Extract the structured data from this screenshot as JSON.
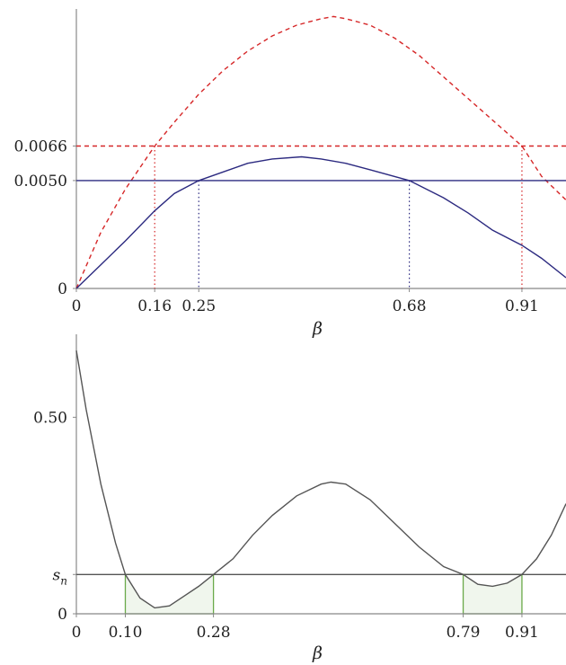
{
  "chart_data": [
    {
      "type": "line",
      "xlabel": "β",
      "xlim": [
        0,
        1.0
      ],
      "ylim": [
        0,
        0.0122
      ],
      "x_ticks": [
        {
          "value": 0,
          "label": "0"
        },
        {
          "value": 0.16,
          "label": "0.16"
        },
        {
          "value": 0.25,
          "label": "0.25"
        },
        {
          "value": 0.68,
          "label": "0.68"
        },
        {
          "value": 0.91,
          "label": "0.91"
        }
      ],
      "y_ticks": [
        {
          "value": 0,
          "label": "0"
        },
        {
          "value": 0.005,
          "label": "0.0050"
        },
        {
          "value": 0.0066,
          "label": "0.0066"
        }
      ],
      "series": [
        {
          "style": "dashed",
          "color": "#d62728",
          "x": [
            0,
            0.05,
            0.1,
            0.16,
            0.2,
            0.25,
            0.3,
            0.35,
            0.4,
            0.45,
            0.5,
            0.525,
            0.55,
            0.6,
            0.65,
            0.7,
            0.75,
            0.8,
            0.85,
            0.91,
            0.95,
            1.0
          ],
          "y": [
            0,
            0.0026,
            0.0046,
            0.0066,
            0.0077,
            0.009,
            0.0101,
            0.011,
            0.0117,
            0.0122,
            0.0125,
            0.0126,
            0.0125,
            0.0122,
            0.0116,
            0.0108,
            0.0098,
            0.0088,
            0.0078,
            0.0066,
            0.0052,
            0.0041
          ]
        },
        {
          "style": "solid",
          "color": "#2c2a80",
          "x": [
            0,
            0.05,
            0.1,
            0.16,
            0.2,
            0.25,
            0.3,
            0.35,
            0.4,
            0.46,
            0.5,
            0.55,
            0.6,
            0.68,
            0.75,
            0.8,
            0.85,
            0.91,
            0.95,
            1.0
          ],
          "y": [
            0,
            0.0011,
            0.0022,
            0.0036,
            0.0044,
            0.005,
            0.0054,
            0.0058,
            0.006,
            0.0061,
            0.006,
            0.0058,
            0.0055,
            0.005,
            0.0042,
            0.0035,
            0.0027,
            0.002,
            0.0014,
            0.0005
          ]
        },
        {
          "style": "dashed",
          "color": "#d62728",
          "x": [
            0,
            1.0
          ],
          "y": [
            0.0066,
            0.0066
          ]
        },
        {
          "style": "solid",
          "color": "#2c2a80",
          "x": [
            0,
            1.0
          ],
          "y": [
            0.005,
            0.005
          ]
        }
      ],
      "markers": [
        {
          "x": 0.16,
          "color": "#d62728"
        },
        {
          "x": 0.25,
          "color": "#2c2a80"
        },
        {
          "x": 0.68,
          "color": "#2c2a80"
        },
        {
          "x": 0.91,
          "color": "#d62728"
        }
      ]
    },
    {
      "type": "line",
      "xlabel": "β",
      "xlim": [
        0,
        1.0
      ],
      "ylim": [
        0,
        0.67
      ],
      "x_ticks": [
        {
          "value": 0,
          "label": "0"
        },
        {
          "value": 0.1,
          "label": "0.10"
        },
        {
          "value": 0.28,
          "label": "0.28"
        },
        {
          "value": 0.79,
          "label": "0.79"
        },
        {
          "value": 0.91,
          "label": "0.91"
        }
      ],
      "y_ticks": [
        {
          "value": 0,
          "label": "0"
        },
        {
          "value": 0.1,
          "label": "s_n"
        },
        {
          "value": 0.5,
          "label": "0.50"
        }
      ],
      "series": [
        {
          "style": "solid",
          "color": "#555555",
          "x": [
            0,
            0.02,
            0.05,
            0.08,
            0.1,
            0.13,
            0.16,
            0.19,
            0.22,
            0.25,
            0.28,
            0.32,
            0.36,
            0.4,
            0.45,
            0.5,
            0.52,
            0.55,
            0.6,
            0.65,
            0.7,
            0.75,
            0.79,
            0.82,
            0.85,
            0.88,
            0.91,
            0.94,
            0.97,
            1.0
          ],
          "y": [
            0.67,
            0.52,
            0.33,
            0.18,
            0.1,
            0.04,
            0.015,
            0.02,
            0.045,
            0.07,
            0.1,
            0.14,
            0.2,
            0.25,
            0.3,
            0.33,
            0.335,
            0.33,
            0.29,
            0.23,
            0.17,
            0.12,
            0.1,
            0.075,
            0.07,
            0.078,
            0.1,
            0.14,
            0.2,
            0.28
          ]
        },
        {
          "style": "solid",
          "color": "#555555",
          "x": [
            0,
            1.0
          ],
          "y": [
            0.1,
            0.1
          ]
        }
      ],
      "shaded_regions": [
        {
          "x_from": 0.1,
          "x_to": 0.28,
          "color": "#6aaa4a"
        },
        {
          "x_from": 0.79,
          "x_to": 0.91,
          "color": "#6aaa4a"
        }
      ]
    }
  ]
}
